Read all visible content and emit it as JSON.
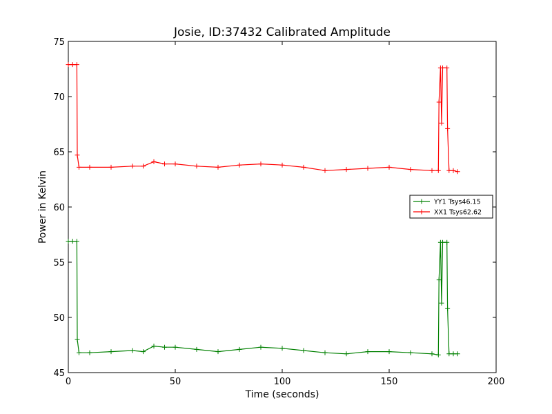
{
  "chart_data": {
    "type": "line",
    "title": "Josie, ID:37432 Calibrated Amplitude",
    "xlabel": "Time (seconds)",
    "ylabel": "Power in Kelvin",
    "xlim": [
      0,
      200
    ],
    "ylim": [
      45,
      75
    ],
    "xticks": [
      "0",
      "50",
      "100",
      "150",
      "200"
    ],
    "yticks": [
      "45",
      "50",
      "55",
      "60",
      "65",
      "70",
      "75"
    ],
    "grid": false,
    "legend_position": "center-right",
    "series": [
      {
        "name": "YY1 Tsys46.15",
        "color": "#008000",
        "marker": "+",
        "x": [
          0,
          2,
          4,
          4.2,
          5,
          10,
          20,
          30,
          35,
          40,
          45,
          50,
          60,
          70,
          80,
          90,
          100,
          110,
          120,
          130,
          140,
          150,
          160,
          170,
          173,
          173.3,
          174,
          174.5,
          175,
          177,
          177.3,
          178,
          180,
          182
        ],
        "y": [
          56.9,
          56.9,
          56.9,
          48,
          46.8,
          46.8,
          46.9,
          47.0,
          46.9,
          47.4,
          47.3,
          47.3,
          47.1,
          46.9,
          47.1,
          47.3,
          47.2,
          47.0,
          46.8,
          46.7,
          46.9,
          46.9,
          46.8,
          46.7,
          46.6,
          53.4,
          56.8,
          51.3,
          56.8,
          56.8,
          50.8,
          46.7,
          46.7,
          46.7
        ]
      },
      {
        "name": "XX1 Tsys62.62",
        "color": "#ff0000",
        "marker": "+",
        "x": [
          0,
          2,
          4,
          4.2,
          5,
          10,
          20,
          30,
          35,
          40,
          45,
          50,
          60,
          70,
          80,
          90,
          100,
          110,
          120,
          130,
          140,
          150,
          160,
          170,
          173,
          173.3,
          174,
          174.5,
          175,
          177,
          177.3,
          178,
          180,
          182
        ],
        "y": [
          72.9,
          72.9,
          72.9,
          64.7,
          63.6,
          63.6,
          63.6,
          63.7,
          63.7,
          64.1,
          63.9,
          63.9,
          63.7,
          63.6,
          63.8,
          63.9,
          63.8,
          63.6,
          63.3,
          63.4,
          63.5,
          63.6,
          63.4,
          63.3,
          63.3,
          69.5,
          72.6,
          67.6,
          72.6,
          72.6,
          67.1,
          63.3,
          63.3,
          63.2
        ]
      }
    ]
  }
}
